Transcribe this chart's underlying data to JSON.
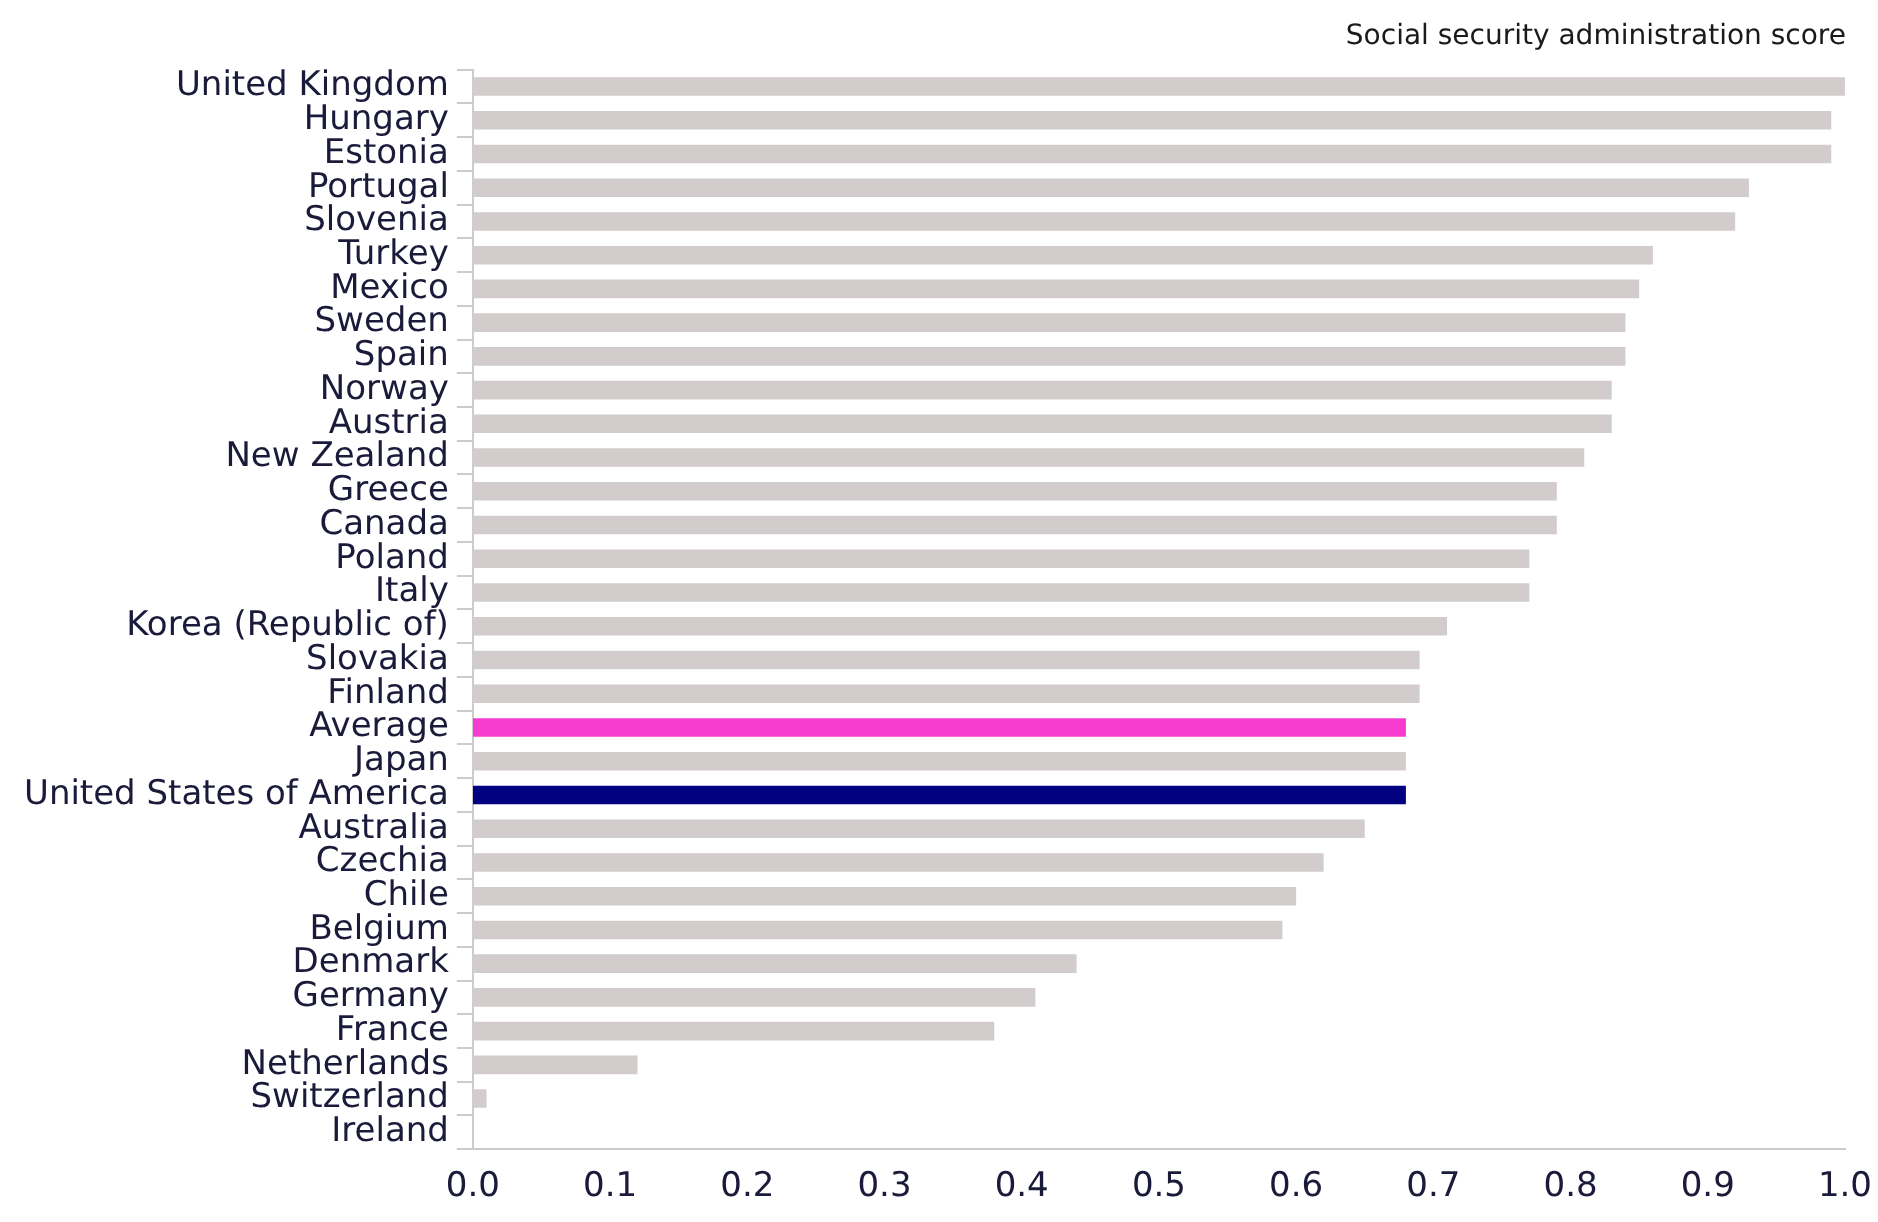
{
  "chart_data": {
    "type": "bar",
    "orientation": "horizontal",
    "title": "Social security administration score",
    "categories": [
      "United Kingdom",
      "Hungary",
      "Estonia",
      "Portugal",
      "Slovenia",
      "Turkey",
      "Mexico",
      "Sweden",
      "Spain",
      "Norway",
      "Austria",
      "New Zealand",
      "Greece",
      "Canada",
      "Poland",
      "Italy",
      "Korea (Republic of)",
      "Slovakia",
      "Finland",
      "Average",
      "Japan",
      "United States of America",
      "Australia",
      "Czechia",
      "Chile",
      "Belgium",
      "Denmark",
      "Germany",
      "France",
      "Netherlands",
      "Switzerland",
      "Ireland"
    ],
    "values": [
      1.0,
      0.99,
      0.99,
      0.93,
      0.92,
      0.86,
      0.85,
      0.84,
      0.84,
      0.83,
      0.83,
      0.81,
      0.79,
      0.79,
      0.77,
      0.77,
      0.71,
      0.69,
      0.69,
      0.68,
      0.68,
      0.68,
      0.65,
      0.62,
      0.6,
      0.59,
      0.44,
      0.41,
      0.38,
      0.12,
      0.01,
      0
    ],
    "colors": [
      "#d3cccc",
      "#d3cccc",
      "#d3cccc",
      "#d3cccc",
      "#d3cccc",
      "#d3cccc",
      "#d3cccc",
      "#d3cccc",
      "#d3cccc",
      "#d3cccc",
      "#d3cccc",
      "#d3cccc",
      "#d3cccc",
      "#d3cccc",
      "#d3cccc",
      "#d3cccc",
      "#d3cccc",
      "#d3cccc",
      "#d3cccc",
      "#f53ccf",
      "#d3cccc",
      "#000080",
      "#d3cccc",
      "#d3cccc",
      "#d3cccc",
      "#d3cccc",
      "#d3cccc",
      "#d3cccc",
      "#d3cccc",
      "#d3cccc",
      "#d3cccc",
      "#d3cccc"
    ],
    "xlim": [
      0,
      1
    ],
    "xticks": [
      {
        "value": 0,
        "label": "0.0"
      },
      0.1,
      0.2,
      0.3,
      0.4,
      0.5,
      0.6,
      0.7,
      0.8,
      0.9,
      {
        "value": 1,
        "label": "1.0"
      }
    ],
    "grid": false,
    "legend": false
  }
}
